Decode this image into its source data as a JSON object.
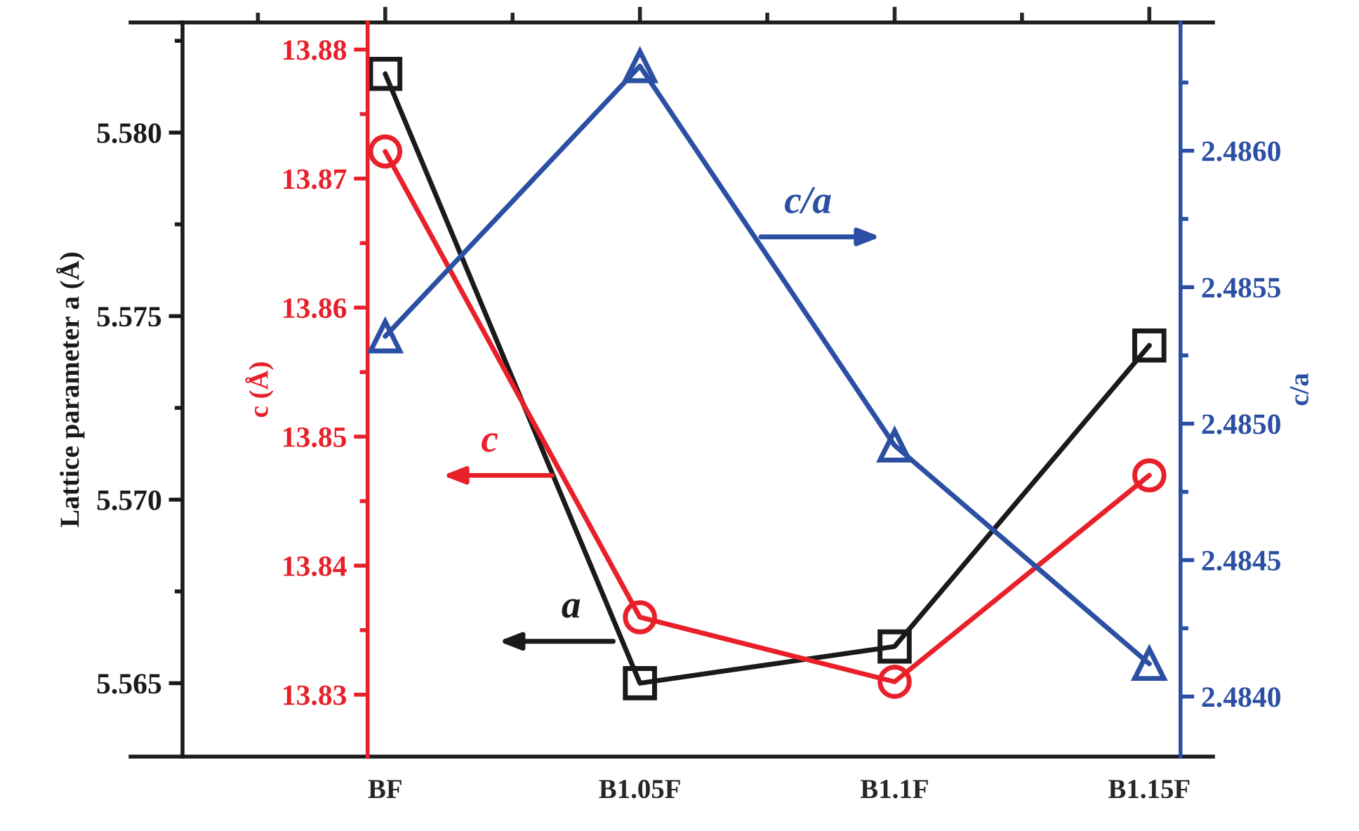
{
  "chart_data": {
    "type": "line",
    "categories": [
      "BF",
      "B1.05F",
      "B1.1F",
      "B1.15F"
    ],
    "series": [
      {
        "color": "#1a1a1a",
        "marker": "square",
        "values": [
          5.5816,
          5.565,
          5.566,
          5.5742
        ]
      },
      {
        "color": "#e8202a",
        "marker": "circle",
        "axis": "y2",
        "values": [
          13.8721,
          13.836,
          13.831,
          13.847
        ]
      },
      {
        "color": "#2b4fa3",
        "marker": "triangle",
        "axis": "y3",
        "values": [
          2.48532,
          2.48631,
          2.48492,
          2.48412
        ]
      }
    ],
    "ylabel": "Lattice parameter a (Å)",
    "y2label": "c (Å)",
    "y3label": "c/a",
    "ylim": [
      5.563,
      5.583
    ],
    "yticks": [
      {
        "value": 5.565,
        "label": "5.565"
      },
      {
        "value": 5.57,
        "label": "5.570"
      },
      5.575,
      {
        "value": 5.58,
        "label": "5.580"
      }
    ],
    "y2lim": [
      13.8252,
      13.8821
    ],
    "y2ticks": [
      13.83,
      13.84,
      13.85,
      13.86,
      13.87,
      13.88
    ],
    "y3lim": [
      2.48378,
      2.48647
    ],
    "y3ticks": [
      {
        "value": 2.484,
        "label": "2.4840"
      },
      2.4845,
      {
        "value": 2.485,
        "label": "2.4850"
      },
      2.4855,
      {
        "value": 2.486,
        "label": "2.4860"
      }
    ],
    "annotations": [
      "a",
      "c",
      "c/a"
    ],
    "grid": false,
    "legend": false,
    "line_style": "solid"
  }
}
